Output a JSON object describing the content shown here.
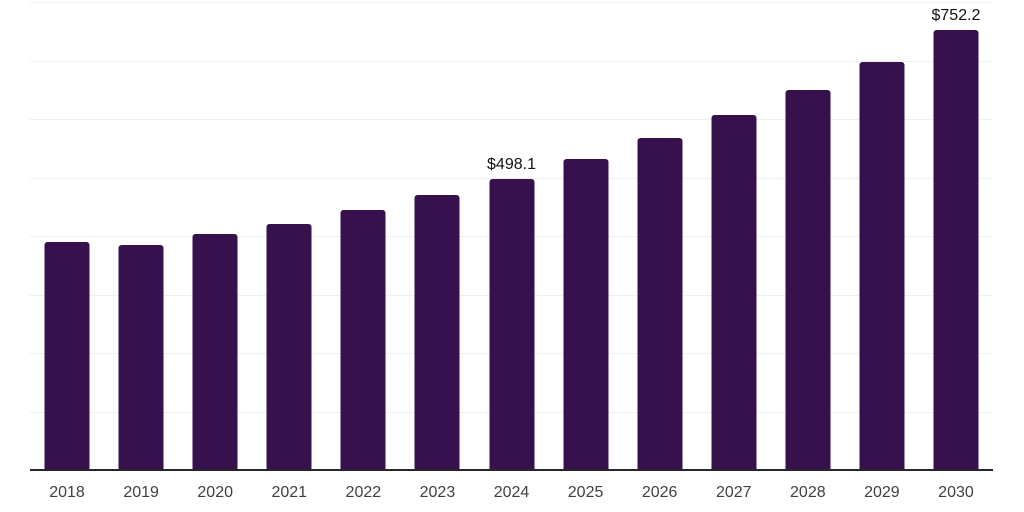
{
  "chart_data": {
    "type": "bar",
    "title": "",
    "categories": [
      "2018",
      "2019",
      "2020",
      "2021",
      "2022",
      "2023",
      "2024",
      "2025",
      "2026",
      "2027",
      "2028",
      "2029",
      "2030"
    ],
    "values": [
      389,
      385,
      404,
      421,
      445,
      470,
      498.1,
      531,
      567,
      607,
      650,
      698,
      752.2
    ],
    "data_labels": [
      null,
      null,
      null,
      null,
      null,
      null,
      "$498.1",
      null,
      null,
      null,
      null,
      null,
      "$752.2"
    ],
    "labeled_values_note": "only 2024 and 2030 bars show data labels; other values estimated from gridlines",
    "xlabel": "",
    "ylabel": "",
    "ylim": [
      0,
      800
    ],
    "gridline_step": 100,
    "grid": "horizontal-only",
    "y_axis_tick_labels_visible": false,
    "legend": "none",
    "colors": {
      "bar": "#36114e",
      "gridline": "#efefef",
      "axis_line": "#262626",
      "x_tick_label": "#404040",
      "data_label": "#111111",
      "background": "#ffffff"
    }
  }
}
